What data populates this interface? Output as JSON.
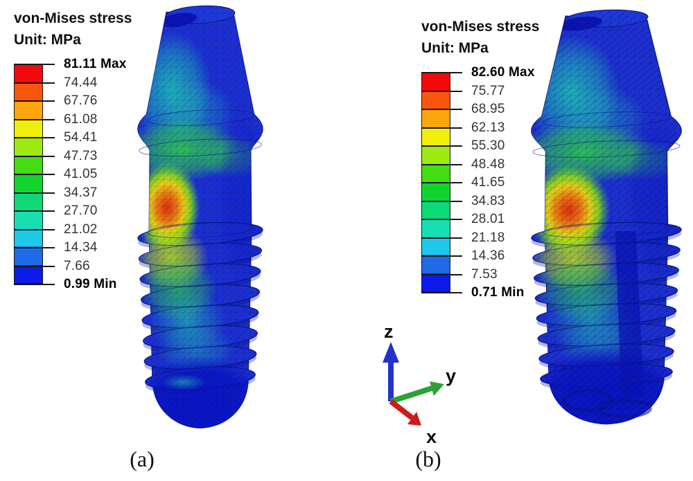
{
  "figure": {
    "captions": {
      "a": "(a)",
      "b": "(b)"
    }
  },
  "colormap": [
    "#f20a0a",
    "#f8560d",
    "#fca50c",
    "#f0ef0c",
    "#9dea10",
    "#42dd12",
    "#12d42e",
    "#0ed977",
    "#16dfb2",
    "#1ec8e8",
    "#1e6be8",
    "#0c1bea"
  ],
  "legends": [
    {
      "title": "von-Mises stress",
      "unit": "Unit: MPa",
      "ticks": [
        "81.11 Max",
        "74.44",
        "67.76",
        "61.08",
        "54.41",
        "47.73",
        "41.05",
        "34.37",
        "27.70",
        "21.02",
        "14.34",
        "7.66",
        "0.99 Min"
      ]
    },
    {
      "title": "von-Mises stress",
      "unit": "Unit: MPa",
      "ticks": [
        "82.60 Max",
        "75.77",
        "68.95",
        "62.13",
        "55.30",
        "48.48",
        "41.65",
        "34.83",
        "28.01",
        "21.18",
        "14.36",
        "7.53",
        "0.71 Min"
      ]
    }
  ],
  "triad": {
    "labels": {
      "x": "x",
      "y": "y",
      "z": "z"
    },
    "colors": {
      "x": "#cf1b1b",
      "y": "#2aa336",
      "z": "#2133cc"
    }
  }
}
